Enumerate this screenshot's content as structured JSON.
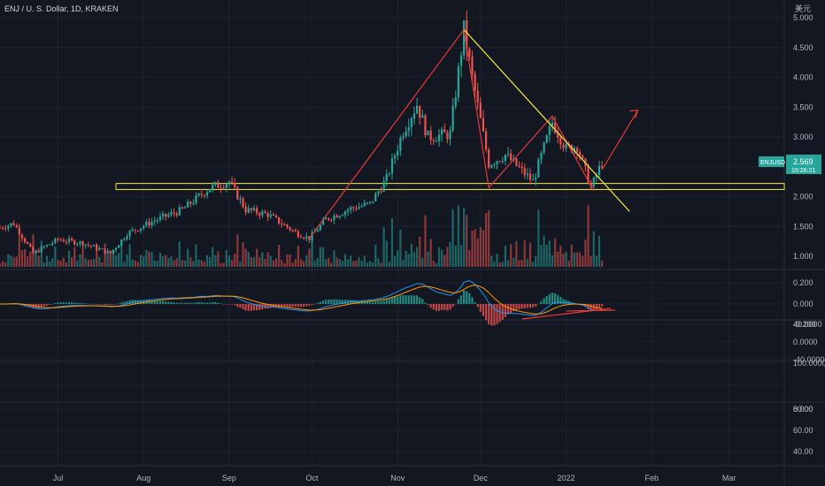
{
  "header": {
    "symbol_title": "ENJ / U. S. Dollar, 1D, KRAKEN",
    "currency_label": "美元"
  },
  "price_badge": {
    "ticker": "ENJUSD",
    "price": "2.569",
    "countdown": "15:26:21",
    "color": "#26a69a"
  },
  "colors": {
    "background": "#131722",
    "grid": "#1e222d",
    "up": "#26a69a",
    "down": "#ef5350",
    "pattern_line": "#e53935",
    "trend_line": "#ffeb3b",
    "macd_line": "#2196f3",
    "signal_line": "#ff9800"
  },
  "price_axis": {
    "labels": [
      "5.000",
      "4.500",
      "4.000",
      "3.500",
      "3.000",
      "2.500",
      "2.000",
      "1.500",
      "1.000"
    ]
  },
  "macd_axis": {
    "labels": [
      "0.200",
      "0.000",
      "-0.200"
    ]
  },
  "pane3_axis": {
    "labels": [
      "40.0000",
      "0.0000",
      "-40.0000"
    ]
  },
  "pane4_axis": {
    "labels": [
      "100.0000",
      "0.000"
    ]
  },
  "pane5_axis": {
    "labels": [
      "80.00",
      "60.00",
      "40.00"
    ]
  },
  "time_axis": {
    "labels": [
      "Jul",
      "Aug",
      "Sep",
      "Oct",
      "Nov",
      "Dec",
      "2022",
      "Feb",
      "Mar"
    ]
  },
  "chart_data": {
    "type": "candlestick",
    "title": "ENJ / U. S. Dollar, 1D, KRAKEN",
    "ylim": [
      0.85,
      5.05
    ],
    "x_range": [
      "2021-06-10",
      "2022-03-21"
    ],
    "last_price": 2.569,
    "price_path": [
      [
        "2021-06-10",
        1.48
      ],
      [
        "2021-06-15",
        1.55
      ],
      [
        "2021-06-22",
        1.05
      ],
      [
        "2021-07-01",
        1.28
      ],
      [
        "2021-07-10",
        1.22
      ],
      [
        "2021-07-20",
        1.05
      ],
      [
        "2021-07-26",
        1.38
      ],
      [
        "2021-08-05",
        1.6
      ],
      [
        "2021-08-15",
        1.78
      ],
      [
        "2021-08-25",
        2.15
      ],
      [
        "2021-09-01",
        2.25
      ],
      [
        "2021-09-07",
        1.78
      ],
      [
        "2021-09-15",
        1.7
      ],
      [
        "2021-09-25",
        1.4
      ],
      [
        "2021-09-30",
        1.3
      ],
      [
        "2021-10-06",
        1.62
      ],
      [
        "2021-10-15",
        1.8
      ],
      [
        "2021-10-22",
        1.88
      ],
      [
        "2021-10-28",
        2.3
      ],
      [
        "2021-11-03",
        3.1
      ],
      [
        "2021-11-08",
        3.55
      ],
      [
        "2021-11-12",
        3.0
      ],
      [
        "2021-11-20",
        3.05
      ],
      [
        "2021-11-25",
        4.8
      ],
      [
        "2021-11-28",
        4.0
      ],
      [
        "2021-12-04",
        2.55
      ],
      [
        "2021-12-10",
        2.7
      ],
      [
        "2021-12-20",
        2.25
      ],
      [
        "2021-12-27",
        3.25
      ],
      [
        "2022-01-01",
        2.8
      ],
      [
        "2022-01-05",
        2.85
      ],
      [
        "2022-01-10",
        2.15
      ],
      [
        "2022-01-14",
        2.57
      ]
    ],
    "support_zone": {
      "low": 2.12,
      "high": 2.22,
      "from": "2021-07-22"
    },
    "annotations": [
      {
        "type": "pattern_line",
        "points": [
          [
            "2021-09-30",
            1.3
          ],
          [
            "2021-11-25",
            4.8
          ],
          [
            "2021-12-04",
            2.15
          ],
          [
            "2021-12-27",
            3.35
          ],
          [
            "2022-01-11",
            2.1
          ]
        ]
      },
      {
        "type": "trend_line",
        "points": [
          [
            "2021-11-25",
            4.8
          ],
          [
            "2022-01-24",
            1.75
          ]
        ]
      },
      {
        "type": "arrow",
        "points": [
          [
            "2022-01-14",
            2.45
          ],
          [
            "2022-01-27",
            3.45
          ]
        ]
      }
    ]
  }
}
